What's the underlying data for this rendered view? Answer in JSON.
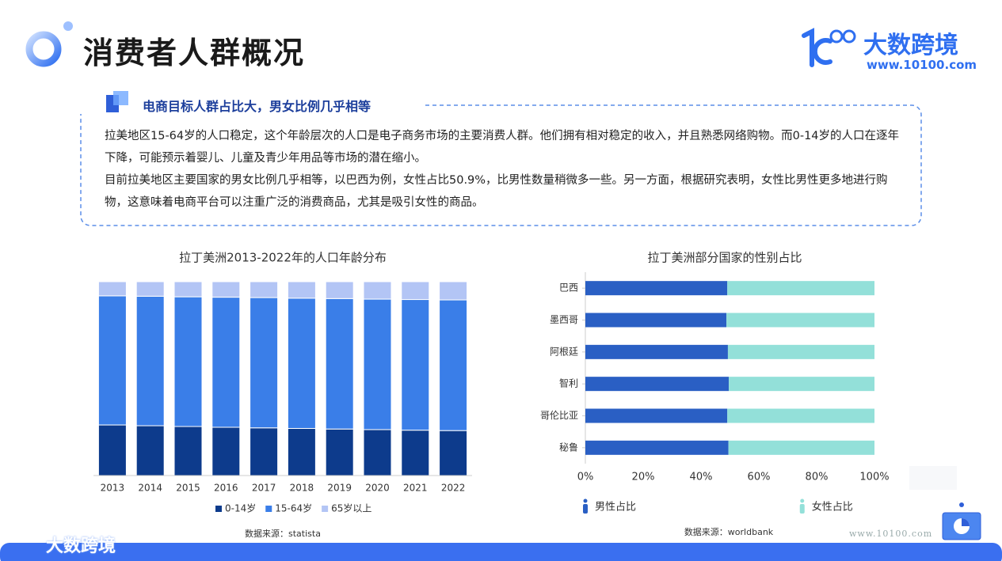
{
  "header": {
    "title": "消费者人群概况"
  },
  "logo": {
    "name": "大数跨境",
    "url": "www.10100.com"
  },
  "section": {
    "heading": "电商目标人群占比大，男女比例几乎相等",
    "paragraphs": [
      "拉美地区15-64岁的人口稳定，这个年龄层次的人口是电子商务市场的主要消费人群。他们拥有相对稳定的收入，并且熟悉网络购物。而0-14岁的人口在逐年下降，可能预示着婴儿、儿童及青少年用品等市场的潜在缩小。",
      "目前拉美地区主要国家的男女比例几乎相等，以巴西为例，女性占比50.9%，比男性数量稍微多一些。另一方面，根据研究表明，女性比男性更多地进行购物，这意味着电商平台可以注重广泛的消费商品，尤其是吸引女性的商品。"
    ]
  },
  "footer": {
    "watermark": "大数跨境",
    "url": "www.10100.com"
  },
  "chart_data": [
    {
      "type": "bar",
      "stacked": true,
      "title": "拉丁美洲2013-2022年的人口年龄分布",
      "categories": [
        "2013",
        "2014",
        "2015",
        "2016",
        "2017",
        "2018",
        "2019",
        "2020",
        "2021",
        "2022"
      ],
      "ylim": [
        0,
        100
      ],
      "series": [
        {
          "name": "0-14岁",
          "color": "#0d3b8c",
          "values": [
            26.1,
            25.7,
            25.3,
            24.9,
            24.6,
            24.3,
            24.0,
            23.7,
            23.4,
            23.2
          ]
        },
        {
          "name": "15-64岁",
          "color": "#3a7ee8",
          "values": [
            66.6,
            66.8,
            66.9,
            67.1,
            67.2,
            67.2,
            67.3,
            67.3,
            67.4,
            67.4
          ]
        },
        {
          "name": "65岁以上",
          "color": "#b3c5f5",
          "values": [
            7.3,
            7.5,
            7.8,
            8.0,
            8.2,
            8.5,
            8.7,
            9.0,
            9.2,
            9.4
          ]
        }
      ],
      "source": "数据来源：statista"
    },
    {
      "type": "barh",
      "stacked": true,
      "title": "拉丁美洲部分国家的性别占比",
      "categories": [
        "巴西",
        "墨西哥",
        "阿根廷",
        "智利",
        "哥伦比亚",
        "秘鲁"
      ],
      "xlim": [
        0,
        100
      ],
      "xticks": [
        {
          "value": 0,
          "label": "0%"
        },
        {
          "value": 20,
          "label": "20%"
        },
        {
          "value": 40,
          "label": "40%"
        },
        {
          "value": 60,
          "label": "60%"
        },
        {
          "value": 80,
          "label": "80%"
        },
        {
          "value": 100,
          "label": "100%"
        }
      ],
      "series": [
        {
          "name": "男性占比",
          "color": "#2a5fc4",
          "values": [
            49.1,
            48.8,
            49.3,
            49.6,
            49.1,
            49.5
          ]
        },
        {
          "name": "女性占比",
          "color": "#93e0d9",
          "values": [
            50.9,
            51.2,
            50.7,
            50.4,
            50.9,
            50.5
          ]
        }
      ],
      "source": "数据来源：worldbank"
    }
  ]
}
